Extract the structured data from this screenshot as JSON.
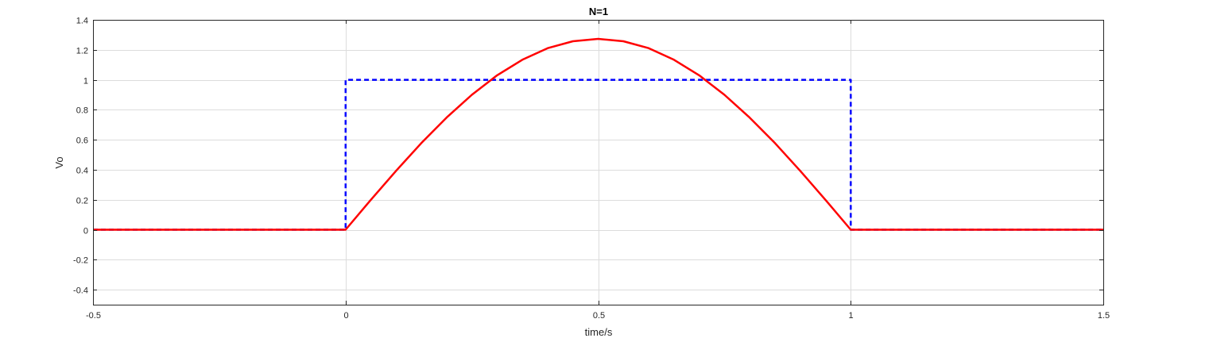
{
  "chart_data": {
    "type": "line",
    "title": "N=1",
    "xlabel": "time/s",
    "ylabel": "Vo",
    "xlim": [
      -0.5,
      1.5
    ],
    "ylim": [
      -0.5,
      1.4
    ],
    "xticks": [
      -0.5,
      0,
      0.5,
      1,
      1.5
    ],
    "xtick_labels": [
      "-0.5",
      "0",
      "0.5",
      "1",
      "1.5"
    ],
    "yticks": [
      -0.4,
      -0.2,
      0,
      0.2,
      0.4,
      0.6,
      0.8,
      1,
      1.2,
      1.4
    ],
    "ytick_labels": [
      "-0.4",
      "-0.2",
      "0",
      "0.2",
      "0.4",
      "0.6",
      "0.8",
      "1",
      "1.2",
      "1.4"
    ],
    "grid": true,
    "series": [
      {
        "color": "#0000ff",
        "style": "dashed",
        "x": [
          -0.5,
          0,
          0,
          1,
          1,
          1.5
        ],
        "y": [
          0,
          0,
          1,
          1,
          0,
          0
        ]
      },
      {
        "color": "#ff0000",
        "style": "solid",
        "x": [
          -0.5,
          0,
          0.05,
          0.1,
          0.15,
          0.2,
          0.25,
          0.3,
          0.35,
          0.4,
          0.45,
          0.5,
          0.55,
          0.6,
          0.65,
          0.7,
          0.75,
          0.8,
          0.85,
          0.9,
          0.95,
          1,
          1.5
        ],
        "y": [
          0,
          0,
          0.199,
          0.393,
          0.578,
          0.748,
          0.9,
          1.03,
          1.134,
          1.211,
          1.257,
          1.273,
          1.257,
          1.211,
          1.134,
          1.03,
          0.9,
          0.748,
          0.578,
          0.393,
          0.199,
          0,
          0
        ]
      }
    ]
  }
}
